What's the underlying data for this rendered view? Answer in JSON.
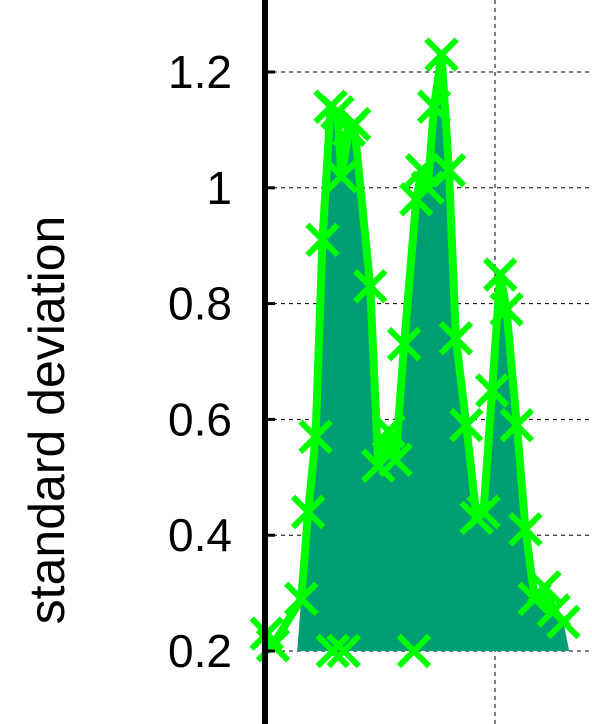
{
  "chart_data": {
    "type": "area",
    "title": "",
    "xlabel": "",
    "ylabel": "standard deviation",
    "ylim": [
      0.2,
      1.3
    ],
    "xlim": [
      0,
      56
    ],
    "y_ticks": [
      0.2,
      0.4,
      0.6,
      0.8,
      1.0,
      1.2
    ],
    "y_tick_labels": [
      "0.2",
      "0.4",
      "0.6",
      "0.8",
      "1",
      "1.2"
    ],
    "x_gridlines": [
      0,
      40
    ],
    "grid": true,
    "fill_color": "#009e73",
    "line_color": "#00ff00",
    "marker": "x",
    "series": [
      {
        "points": [
          [
            0.3,
            0.23
          ],
          [
            1.4,
            0.21
          ],
          [
            6.3,
            0.29
          ],
          [
            7.5,
            0.44
          ],
          [
            8.8,
            0.57
          ],
          [
            10,
            0.91
          ],
          [
            11.4,
            1.14
          ],
          [
            12.6,
            1.13
          ],
          [
            13.3,
            1.02
          ],
          [
            14.6,
            1.1
          ],
          [
            15.5,
            1.11
          ],
          [
            18.3,
            0.83
          ],
          [
            19.7,
            0.52
          ],
          [
            21.5,
            0.58
          ],
          [
            22.7,
            0.53
          ],
          [
            24.2,
            0.73
          ],
          [
            26.3,
            0.98
          ],
          [
            27.3,
            1.03
          ],
          [
            28.3,
            1.0
          ],
          [
            29.4,
            1.14
          ],
          [
            30.7,
            1.23
          ],
          [
            32.0,
            1.03
          ],
          [
            33.2,
            0.74
          ],
          [
            35.0,
            0.59
          ],
          [
            36.8,
            0.43
          ],
          [
            38.0,
            0.44
          ],
          [
            39.5,
            0.65
          ],
          [
            40.9,
            0.85
          ],
          [
            42.0,
            0.79
          ],
          [
            43.8,
            0.59
          ],
          [
            45.3,
            0.41
          ],
          [
            46.9,
            0.29
          ],
          [
            48.6,
            0.31
          ],
          [
            50.2,
            0.27
          ],
          [
            51.9,
            0.25
          ]
        ]
      }
    ],
    "clipped_marker_x": [
      11.8,
      13.7,
      25.9
    ]
  }
}
